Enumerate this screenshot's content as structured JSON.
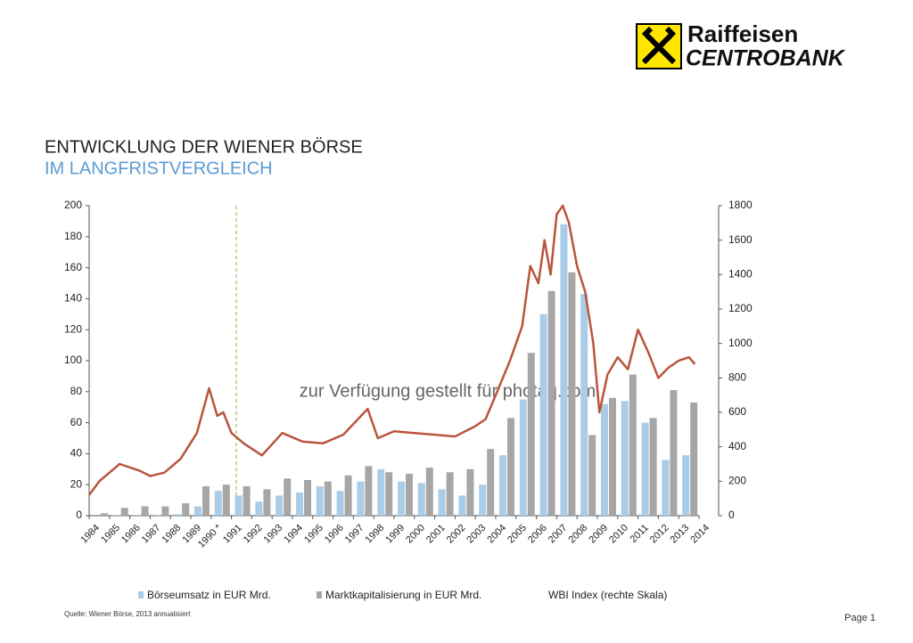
{
  "brand": {
    "line1": "Raiffeisen",
    "line2": "CENTROBANK"
  },
  "source": "Quelle: Wiener Börse, 2013 annualisiert",
  "page": "Page 1",
  "watermark": "zur Verfügung gestellt für photaq.com",
  "chart_data": {
    "type": "bar",
    "title": "ENTWICKLUNG DER WIENER BÖRSE",
    "subtitle": "IM LANGFRISTVERGLEICH",
    "categories": [
      "1984",
      "1985",
      "1986",
      "1987",
      "1988",
      "1989",
      "1990 *",
      "1991",
      "1992",
      "1993",
      "1994",
      "1995",
      "1996",
      "1997",
      "1998",
      "1999",
      "2000",
      "2001",
      "2002",
      "2003",
      "2004",
      "2005",
      "2006",
      "2007",
      "2008",
      "2009",
      "2010",
      "2011",
      "2012",
      "2013",
      "2014"
    ],
    "series": [
      {
        "name": "Börseumsatz in EUR Mrd.",
        "color": "#a9cde9",
        "values": [
          0,
          0.5,
          0.5,
          0.5,
          1,
          6,
          16,
          13,
          9,
          13,
          15,
          19,
          16,
          22,
          30,
          22,
          21,
          17,
          13,
          20,
          39,
          75,
          130,
          188,
          143,
          72,
          74,
          60,
          36,
          39,
          null
        ]
      },
      {
        "name": "Marktkapitalisierung in EUR Mrd.",
        "color": "#a6a6a6",
        "values": [
          1.5,
          5,
          6,
          6,
          8,
          19,
          20,
          19,
          17,
          24,
          23,
          22,
          26,
          32,
          28,
          27,
          31,
          28,
          30,
          43,
          63,
          105,
          145,
          157,
          52,
          76,
          91,
          63,
          81,
          73,
          null
        ]
      },
      {
        "name": "WBI Index (rechte Skala)",
        "color": "#b9553d",
        "type": "line",
        "axis": "y2",
        "x": [
          1984,
          1984.5,
          1985.5,
          1986.5,
          1987,
          1987.7,
          1988.5,
          1989.3,
          1989.9,
          1990.3,
          1990.6,
          1991,
          1991.6,
          1992.5,
          1993.5,
          1994.5,
          1995.5,
          1996.5,
          1997.7,
          1998.2,
          1999,
          2000,
          2001,
          2002,
          2003,
          2003.5,
          2004,
          2004.7,
          2005.3,
          2005.7,
          2006.1,
          2006.4,
          2006.7,
          2007,
          2007.3,
          2007.6,
          2008,
          2008.4,
          2008.8,
          2009.1,
          2009.5,
          2010,
          2010.5,
          2011,
          2011.5,
          2012,
          2012.5,
          2013,
          2013.5,
          2013.8
        ],
        "values": [
          120,
          200,
          300,
          260,
          230,
          250,
          330,
          480,
          740,
          580,
          600,
          480,
          420,
          350,
          480,
          430,
          420,
          470,
          620,
          450,
          490,
          480,
          470,
          460,
          520,
          560,
          700,
          900,
          1100,
          1450,
          1350,
          1600,
          1400,
          1750,
          1800,
          1700,
          1450,
          1300,
          1000,
          600,
          820,
          920,
          850,
          1080,
          950,
          800,
          860,
          900,
          920,
          880
        ]
      }
    ],
    "ylim": [
      0,
      200
    ],
    "yticks": [
      0,
      20,
      40,
      60,
      80,
      100,
      120,
      140,
      160,
      180,
      200
    ],
    "y2lim": [
      0,
      1800
    ],
    "y2ticks": [
      0,
      200,
      400,
      600,
      800,
      1000,
      1200,
      1400,
      1600,
      1800
    ]
  }
}
